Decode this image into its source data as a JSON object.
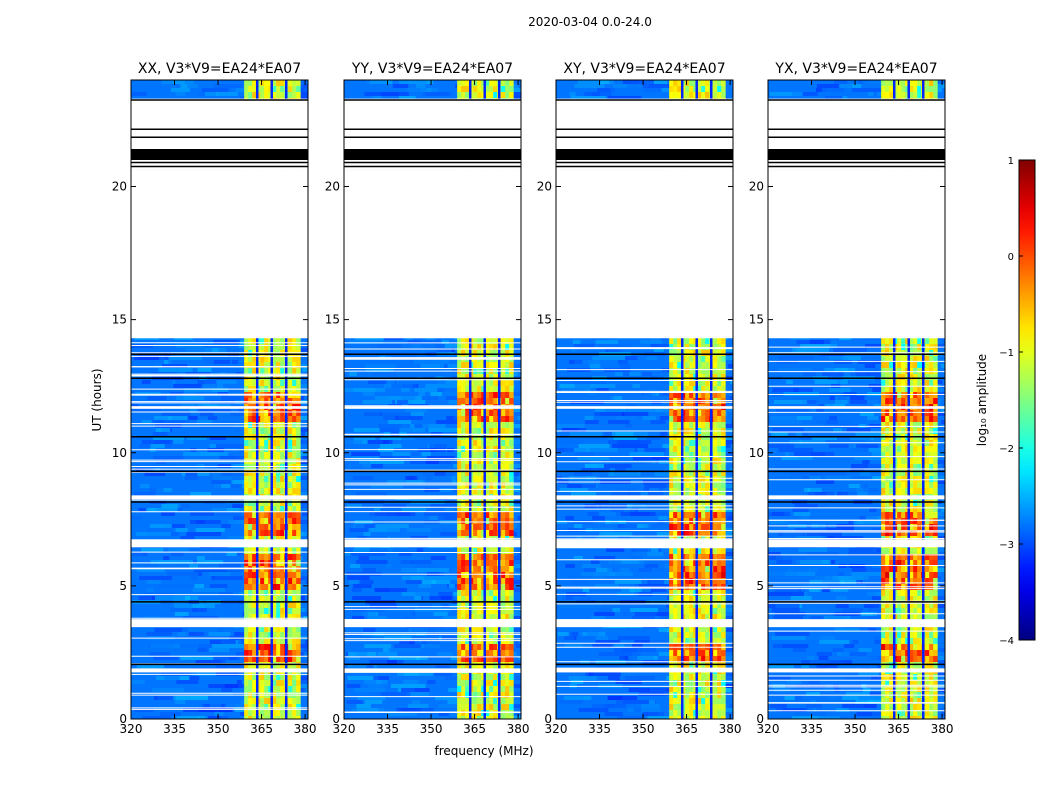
{
  "suptitle": "2020-03-04 0.0-24.0",
  "colors": {
    "background": "#00007f",
    "flag_bar": "#ffffff",
    "flag_line": "#000000",
    "axes": "#000000"
  },
  "chart_data": {
    "type": "heatmap",
    "xlabel": "frequency (MHz)",
    "ylabel": "UT (hours)",
    "xlim": [
      320,
      381
    ],
    "ylim": [
      0,
      24
    ],
    "xticks": [
      320,
      335,
      350,
      365,
      380
    ],
    "yticks": [
      0,
      5,
      10,
      15,
      20
    ],
    "colorbar": {
      "label": "log₁₀ amplitude",
      "range": [
        -4,
        1
      ],
      "ticks": [
        1,
        0,
        -1,
        -2,
        -3,
        -4
      ],
      "tick_labels": [
        "1",
        "0",
        "−1",
        "−2",
        "−3",
        "−4"
      ]
    },
    "noise_level": -2.8,
    "rfi_band_mhz": [
      359,
      378
    ],
    "rfi_level": -1.0,
    "rfi_subband_edges_mhz": [
      363.5,
      368.5,
      373.5
    ],
    "strong_rfi_intervals": [
      [
        4.9,
        6.3
      ],
      [
        11.2,
        12.3
      ],
      [
        7.0,
        7.9
      ],
      [
        2.2,
        3.0
      ]
    ],
    "no_data_interval": [
      14.3,
      20.6
    ],
    "flagged_white_rows": [
      [
        6.45,
        6.75
      ],
      [
        3.45,
        3.75
      ],
      [
        1.75,
        1.9
      ],
      [
        22.7,
        23.1
      ],
      [
        11.65,
        11.75
      ],
      [
        8.25,
        8.4
      ]
    ],
    "flagged_black_rows": [
      21.05,
      21.15,
      21.25,
      21.35,
      20.75,
      20.9,
      21.85,
      22.15,
      23.25,
      8.15,
      9.3,
      10.6,
      12.8,
      13.7,
      4.4,
      2.05
    ],
    "panels": [
      {
        "title": "XX, V3*V9=EA24*EA07"
      },
      {
        "title": "YY, V3*V9=EA24*EA07"
      },
      {
        "title": "XY, V3*V9=EA24*EA07"
      },
      {
        "title": "YX, V3*V9=EA24*EA07"
      }
    ]
  }
}
